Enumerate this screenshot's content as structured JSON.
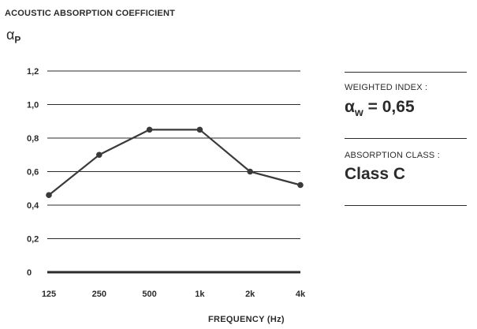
{
  "chart_data": {
    "type": "line",
    "title": "ACOUSTIC ABSORPTION COEFFICIENT",
    "ylabel": {
      "symbol": "α",
      "subscript": "P"
    },
    "xlabel": "FREQUENCY (Hz)",
    "categories": [
      "125",
      "250",
      "500",
      "1k",
      "2k",
      "4k"
    ],
    "values": [
      0.46,
      0.7,
      0.85,
      0.85,
      0.6,
      0.52
    ],
    "ylim": [
      0,
      1.2
    ],
    "yticks": [
      "0",
      "0,2",
      "0,4",
      "0,6",
      "0,8",
      "1,0",
      "1,2"
    ],
    "ytick_values": [
      0,
      0.2,
      0.4,
      0.6,
      0.8,
      1.0,
      1.2
    ],
    "grid": true,
    "line_color": "#3a3a3a"
  },
  "side_panel": {
    "weighted_index_label": "WEIGHTED INDEX :",
    "weighted_index_symbol": "α",
    "weighted_index_subscript": "w",
    "weighted_index_value": "= 0,65",
    "absorption_class_label": "ABSORPTION CLASS :",
    "absorption_class_value": "Class C"
  }
}
